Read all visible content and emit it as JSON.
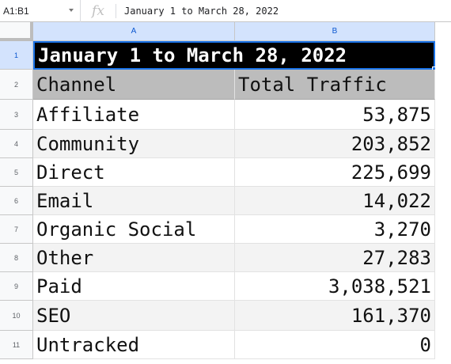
{
  "formula_bar": {
    "name_box": "A1:B1",
    "fx_label": "fx",
    "value": "January 1 to March 28, 2022"
  },
  "columns": [
    "A",
    "B"
  ],
  "row_numbers": [
    "1",
    "2",
    "3",
    "4",
    "5",
    "6",
    "7",
    "8",
    "9",
    "10",
    "11"
  ],
  "title": "January 1 to March 28, 2022",
  "header": {
    "channel": "Channel",
    "traffic": "Total Traffic"
  },
  "rows": [
    {
      "channel": "Affiliate",
      "traffic": "53,875"
    },
    {
      "channel": "Community",
      "traffic": "203,852"
    },
    {
      "channel": "Direct",
      "traffic": "225,699"
    },
    {
      "channel": "Email",
      "traffic": "14,022"
    },
    {
      "channel": "Organic Social",
      "traffic": "3,270"
    },
    {
      "channel": "Other",
      "traffic": "27,283"
    },
    {
      "channel": "Paid",
      "traffic": "3,038,521"
    },
    {
      "channel": "SEO",
      "traffic": "161,370"
    },
    {
      "channel": "Untracked",
      "traffic": "0"
    }
  ],
  "colors": {
    "selection": "#1a73e8",
    "header_fill": "#bcbcbc",
    "title_fill": "#000000"
  }
}
